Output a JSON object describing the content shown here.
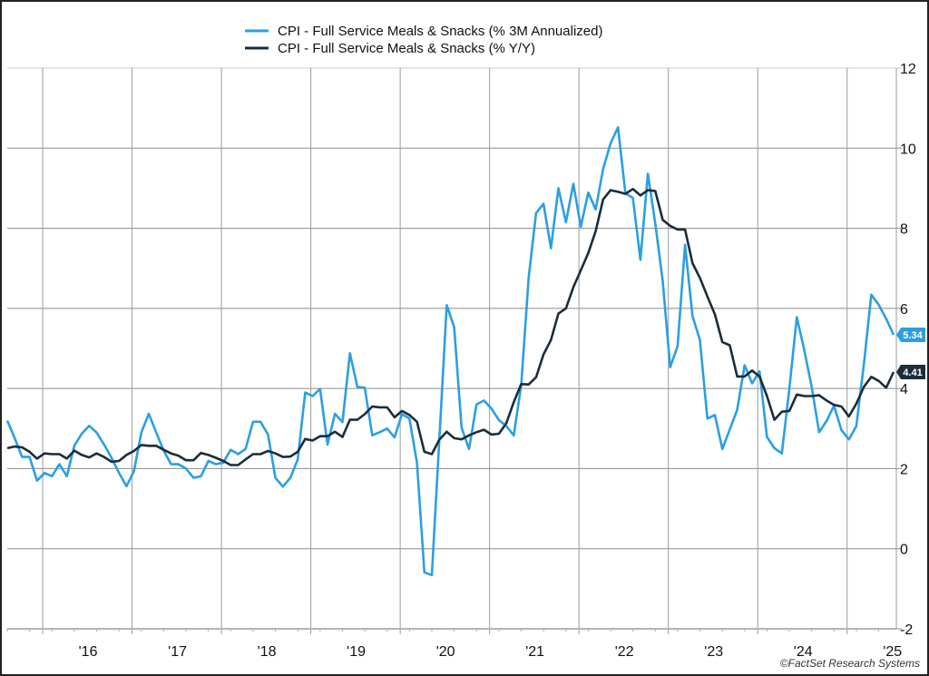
{
  "chart_data": {
    "type": "line",
    "title": "",
    "xlabel": "",
    "ylabel": "",
    "x_start": "2015-08",
    "x_end": "2025-07",
    "frequency": "monthly",
    "x_tick_labels": [
      "'16",
      "'17",
      "'18",
      "'19",
      "'20",
      "'21",
      "'22",
      "'23",
      "'24",
      "'25"
    ],
    "y_ticks": [
      12,
      10,
      8,
      6,
      4,
      2,
      0,
      -2
    ],
    "ylim": [
      -2,
      12
    ],
    "y_axis_side": "right",
    "grid": true,
    "legend_position": "top-center",
    "series": [
      {
        "name": "CPI - Full Service Meals & Snacks (% 3M Annualized)",
        "color": "#2b9fe3",
        "last_value_label": "5.34",
        "values": [
          3.2,
          2.76,
          2.29,
          2.29,
          1.7,
          1.89,
          1.81,
          2.11,
          1.81,
          2.57,
          2.87,
          3.07,
          2.9,
          2.6,
          2.27,
          1.89,
          1.56,
          1.93,
          2.9,
          3.37,
          2.9,
          2.45,
          2.11,
          2.11,
          2.0,
          1.77,
          1.81,
          2.19,
          2.11,
          2.15,
          2.47,
          2.36,
          2.49,
          3.17,
          3.17,
          2.85,
          1.77,
          1.55,
          1.77,
          2.23,
          3.9,
          3.81,
          3.99,
          2.6,
          3.37,
          3.16,
          4.88,
          4.04,
          4.02,
          2.83,
          2.91,
          3.0,
          2.78,
          3.36,
          3.25,
          2.15,
          -0.59,
          -0.66,
          2.7,
          6.08,
          5.53,
          3.02,
          2.49,
          3.6,
          3.7,
          3.5,
          3.21,
          3.06,
          2.83,
          4.08,
          6.76,
          8.38,
          8.61,
          7.5,
          9.0,
          8.15,
          9.11,
          8.04,
          8.89,
          8.47,
          9.48,
          10.12,
          10.52,
          8.87,
          8.76,
          7.21,
          9.36,
          8.12,
          6.68,
          4.53,
          5.06,
          7.59,
          5.81,
          5.21,
          3.25,
          3.34,
          2.49,
          2.98,
          3.47,
          4.58,
          4.13,
          4.43,
          2.79,
          2.51,
          2.38,
          4.0,
          5.78,
          4.96,
          4.04,
          2.91,
          3.19,
          3.57,
          2.96,
          2.73,
          3.06,
          4.6,
          6.34,
          6.09,
          5.74,
          5.34
        ]
      },
      {
        "name": "CPI - Full Service Meals & Snacks (% Y/Y)",
        "color": "#1b2c3c",
        "last_value_label": "4.41",
        "values": [
          2.51,
          2.55,
          2.53,
          2.42,
          2.25,
          2.38,
          2.36,
          2.36,
          2.25,
          2.45,
          2.34,
          2.28,
          2.38,
          2.29,
          2.17,
          2.19,
          2.34,
          2.44,
          2.59,
          2.57,
          2.57,
          2.47,
          2.38,
          2.32,
          2.21,
          2.21,
          2.39,
          2.34,
          2.27,
          2.19,
          2.09,
          2.09,
          2.23,
          2.36,
          2.36,
          2.44,
          2.38,
          2.29,
          2.3,
          2.42,
          2.74,
          2.7,
          2.81,
          2.81,
          2.92,
          2.79,
          3.22,
          3.22,
          3.36,
          3.55,
          3.53,
          3.53,
          3.28,
          3.44,
          3.34,
          3.17,
          2.42,
          2.36,
          2.72,
          2.92,
          2.76,
          2.73,
          2.83,
          2.91,
          2.97,
          2.85,
          2.87,
          3.13,
          3.66,
          4.11,
          4.1,
          4.28,
          4.85,
          5.21,
          5.87,
          6.0,
          6.53,
          6.95,
          7.38,
          7.93,
          8.72,
          8.95,
          8.91,
          8.86,
          8.98,
          8.82,
          8.95,
          8.93,
          8.21,
          8.06,
          7.97,
          7.97,
          7.13,
          6.76,
          6.3,
          5.85,
          5.16,
          5.08,
          4.3,
          4.3,
          4.45,
          4.3,
          3.81,
          3.22,
          3.42,
          3.44,
          3.85,
          3.81,
          3.81,
          3.83,
          3.7,
          3.59,
          3.55,
          3.3,
          3.62,
          4.04,
          4.29,
          4.19,
          4.02,
          4.41
        ]
      }
    ]
  },
  "credit": "©FactSet Research Systems"
}
